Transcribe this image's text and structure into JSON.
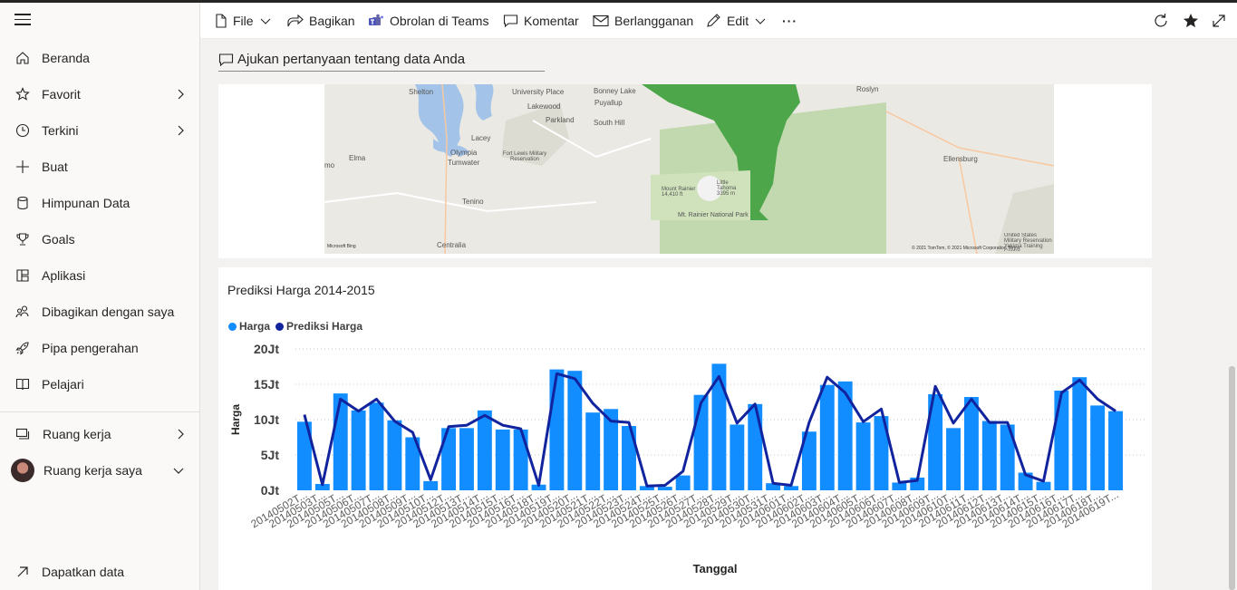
{
  "sidebar": {
    "items": [
      {
        "label": "Beranda",
        "icon": "home-icon"
      },
      {
        "label": "Favorit",
        "icon": "star-icon"
      },
      {
        "label": "Terkini",
        "icon": "clock-icon"
      },
      {
        "label": "Buat",
        "icon": "plus-icon"
      },
      {
        "label": "Himpunan Data",
        "icon": "database-icon"
      },
      {
        "label": "Goals",
        "icon": "trophy-icon"
      },
      {
        "label": "Aplikasi",
        "icon": "apps-icon"
      },
      {
        "label": "Dibagikan dengan saya",
        "icon": "shared-people-icon"
      },
      {
        "label": "Pipa pengerahan",
        "icon": "rocket-icon"
      },
      {
        "label": "Pelajari",
        "icon": "book-icon"
      }
    ],
    "workspaces_label": "Ruang kerja",
    "my_workspace_label": "Ruang kerja saya",
    "get_data_label": "Dapatkan data"
  },
  "toolbar": {
    "file": "File",
    "share": "Bagikan",
    "teams": "Obrolan di Teams",
    "comment": "Komentar",
    "subscribe": "Berlangganan",
    "edit": "Edit",
    "more": "···"
  },
  "qna": {
    "placeholder": "Ajukan pertanyaan tentang data Anda"
  },
  "map": {
    "labels": [
      "Shelton",
      "University Place",
      "Bonney Lake",
      "Roslyn",
      "Lakewood",
      "Puyallup",
      "Parkland",
      "South Hill",
      "Lacey",
      "Olympia",
      "Tumwater",
      "Fort Lewis Military Reservation",
      "Elma",
      "Tenino",
      "Centralia",
      "Mount Rainier 14,410 ft",
      "Little Tahoma 3395 m",
      "Mt. Rainier National Park",
      "Ellensburg",
      "United States Military Reservation Yakima Training Center",
      "mo"
    ],
    "credit": "© 2021 TomTom, © 2021 Microsoft Corporation Terms",
    "brand": "Microsoft Bing"
  },
  "chart_data": {
    "type": "bar",
    "title": "Prediksi Harga 2014-2015",
    "xlabel": "Tanggal",
    "ylabel": "Harga",
    "ylim": [
      0,
      20000000
    ],
    "yticks": [
      "0Jt",
      "5Jt",
      "10Jt",
      "15Jt",
      "20Jt"
    ],
    "legend_position": "top-left",
    "categories": [
      "20140502T...",
      "20140503T...",
      "20140505T...",
      "20140506T...",
      "20140507T...",
      "20140508T...",
      "20140509T...",
      "20140510T...",
      "20140512T...",
      "20140513T...",
      "20140514T...",
      "20140515T...",
      "20140516T...",
      "20140518T...",
      "20140519T...",
      "20140520T...",
      "20140521T...",
      "20140522T...",
      "20140523T...",
      "20140524T...",
      "20140525T...",
      "20140526T...",
      "20140527T...",
      "20140528T...",
      "20140529T...",
      "20140530T...",
      "20140531T...",
      "20140601T...",
      "20140602T...",
      "20140603T...",
      "20140604T...",
      "20140605T...",
      "20140606T...",
      "20140607T...",
      "20140608T...",
      "20140609T...",
      "20140610T...",
      "20140611T...",
      "20140612T...",
      "20140613T...",
      "20140614T...",
      "20140615T...",
      "20140616T...",
      "20140617T...",
      "20140618T...",
      "20140619T..."
    ],
    "series": [
      {
        "name": "Harga",
        "type": "bar",
        "color": "#118dff",
        "values": [
          9700000,
          900000,
          13700000,
          11300000,
          12400000,
          9900000,
          7500000,
          1300000,
          8800000,
          8800000,
          11300000,
          8600000,
          8600000,
          800000,
          17100000,
          16900000,
          11000000,
          11500000,
          9100000,
          600000,
          500000,
          2100000,
          13500000,
          17900000,
          9300000,
          12200000,
          1000000,
          600000,
          8300000,
          14900000,
          15400000,
          9600000,
          10500000,
          1100000,
          1800000,
          13600000,
          8800000,
          13200000,
          9800000,
          9300000,
          2500000,
          1200000,
          14100000,
          16000000,
          12000000,
          11200000
        ]
      },
      {
        "name": "Prediksi Harga",
        "type": "line",
        "color": "#12239e",
        "values": [
          10700000,
          800000,
          12900000,
          11200000,
          12900000,
          9800000,
          8200000,
          1500000,
          9000000,
          9200000,
          10600000,
          9200000,
          8700000,
          700000,
          16500000,
          15800000,
          12300000,
          9800000,
          9600000,
          600000,
          700000,
          2700000,
          12400000,
          16100000,
          9500000,
          12200000,
          1000000,
          700000,
          9600000,
          16000000,
          13800000,
          9700000,
          11500000,
          1100000,
          1400000,
          14700000,
          9500000,
          12900000,
          9600000,
          9600000,
          2200000,
          1300000,
          13800000,
          15600000,
          12900000,
          11200000
        ]
      }
    ]
  }
}
